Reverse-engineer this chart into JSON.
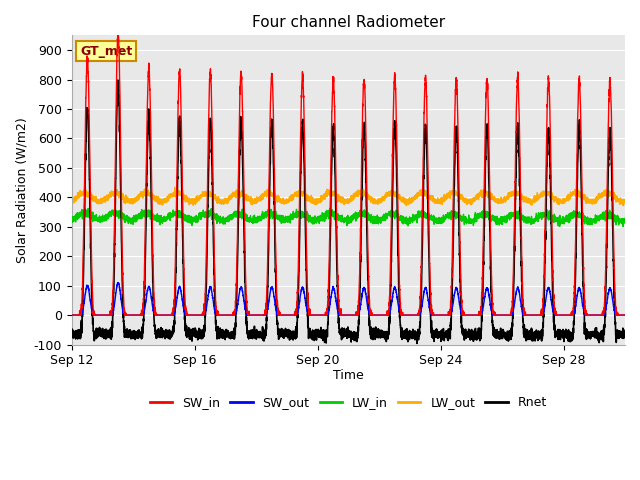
{
  "title": "Four channel Radiometer",
  "xlabel": "Time",
  "ylabel": "Solar Radiation (W/m2)",
  "ylim": [
    -100,
    950
  ],
  "yticks": [
    -100,
    0,
    100,
    200,
    300,
    400,
    500,
    600,
    700,
    800,
    900
  ],
  "xtick_labels": [
    "Sep 12",
    "Sep 16",
    "Sep 20",
    "Sep 24",
    "Sep 28"
  ],
  "xtick_positions": [
    0,
    4,
    8,
    12,
    16
  ],
  "legend_entries": [
    "SW_in",
    "SW_out",
    "LW_in",
    "LW_out",
    "Rnet"
  ],
  "legend_colors": [
    "#ff0000",
    "#0000ff",
    "#00cc00",
    "#ffaa00",
    "#000000"
  ],
  "bg_color": "#e8e8e8",
  "annotation_text": "GT_met",
  "annotation_bg": "#ffff99",
  "annotation_border": "#cc8800",
  "num_days": 18,
  "points_per_day": 288,
  "day_start": 6.0,
  "day_end": 18.5,
  "SW_in_peaks": [
    870,
    960,
    840,
    830,
    820,
    820,
    820,
    810,
    800,
    800,
    810,
    800,
    800,
    800,
    800,
    800,
    800,
    795
  ],
  "LW_in_base": 335,
  "LW_out_base": 400,
  "SW_sharpness": 4.0
}
